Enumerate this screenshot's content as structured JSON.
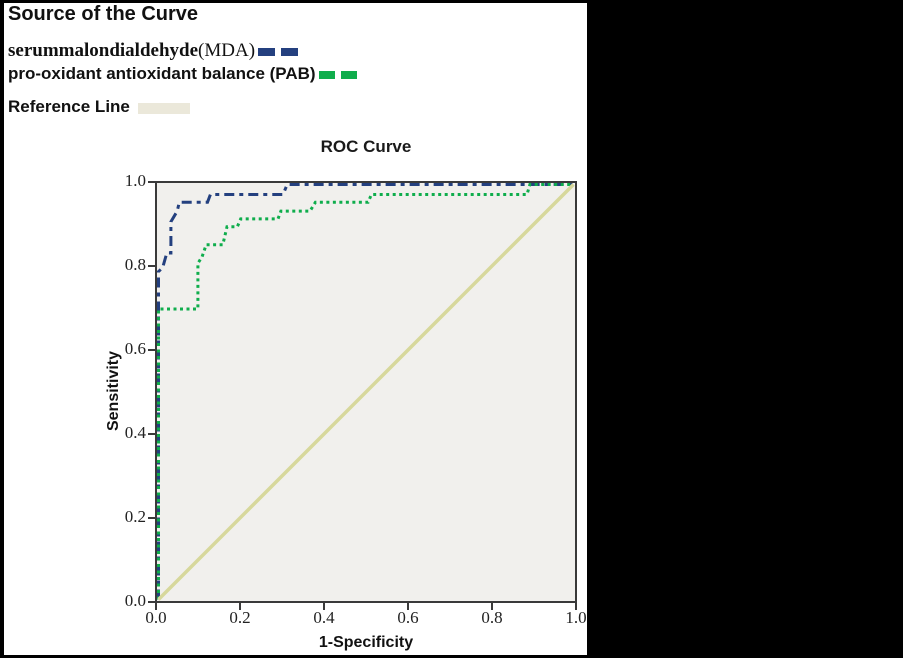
{
  "header": {
    "title": "Source of the Curve"
  },
  "legend": {
    "mda": {
      "label_bold": "serummalondialdehyde",
      "label_regular": "(MDA)",
      "color": "#24407F"
    },
    "pab": {
      "label": "pro-oxidant antioxidant balance (PAB)",
      "color": "#0FAD4C"
    },
    "reference": {
      "label": "Reference Line",
      "color": "#EBE8DA"
    }
  },
  "chart_data": {
    "type": "line",
    "title": "ROC Curve",
    "xlabel": "1-Specificity",
    "ylabel": "Sensitivity",
    "xlim": [
      0,
      1
    ],
    "ylim": [
      0,
      1
    ],
    "xticks": [
      "0.0",
      "0.2",
      "0.4",
      "0.6",
      "0.8",
      "1.0"
    ],
    "yticks": [
      "0.0",
      "0.2",
      "0.4",
      "0.6",
      "0.8",
      "1.0"
    ],
    "plot_background": "#F1F0ED",
    "grid": false,
    "legend_position": "top-left-outside",
    "series": [
      {
        "name": "serummalondialdehyde(MDA)",
        "color": "#24407F",
        "dash": "dashdot",
        "width": 3,
        "points": [
          [
            0,
            0
          ],
          [
            0,
            0.79
          ],
          [
            0.01,
            0.8
          ],
          [
            0.02,
            0.835
          ],
          [
            0.03,
            0.835
          ],
          [
            0.03,
            0.91
          ],
          [
            0.045,
            0.936
          ],
          [
            0.05,
            0.957
          ],
          [
            0.118,
            0.957
          ],
          [
            0.125,
            0.976
          ],
          [
            0.3,
            0.976
          ],
          [
            0.31,
            1.0
          ],
          [
            1,
            1
          ]
        ]
      },
      {
        "name": "pro-oxidant antioxidant balance (PAB)",
        "color": "#0FAD4C",
        "dash": "dot",
        "width": 3,
        "points": [
          [
            0,
            0
          ],
          [
            0,
            0.7
          ],
          [
            0.095,
            0.7
          ],
          [
            0.095,
            0.81
          ],
          [
            0.105,
            0.826
          ],
          [
            0.115,
            0.855
          ],
          [
            0.155,
            0.855
          ],
          [
            0.165,
            0.898
          ],
          [
            0.19,
            0.898
          ],
          [
            0.198,
            0.917
          ],
          [
            0.288,
            0.917
          ],
          [
            0.295,
            0.936
          ],
          [
            0.365,
            0.936
          ],
          [
            0.378,
            0.957
          ],
          [
            0.505,
            0.957
          ],
          [
            0.513,
            0.976
          ],
          [
            0.888,
            0.976
          ],
          [
            0.895,
            1.0
          ],
          [
            1,
            1
          ]
        ]
      },
      {
        "name": "Reference Line",
        "color": "#D7D89C",
        "dash": "solid",
        "width": 3.5,
        "points": [
          [
            0,
            0
          ],
          [
            1,
            1
          ]
        ]
      }
    ]
  }
}
